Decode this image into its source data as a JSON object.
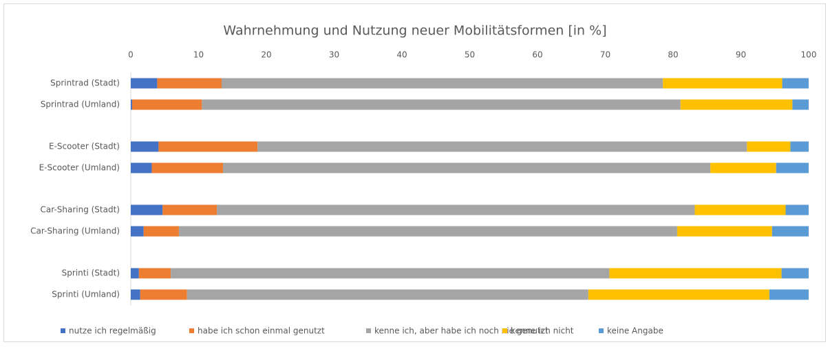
{
  "chart_data": {
    "type": "stacked_barh",
    "title": "Wahrnehmung und Nutzung neuer Mobilitätsformen [in %]",
    "categories": [
      "Sprintrad (Stadt)",
      "Sprintrad (Umland)",
      "E-Scooter (Stadt)",
      "E-Scooter (Umland)",
      "Car-Sharing (Stadt)",
      "Car-Sharing (Umland)",
      "Sprinti (Stadt)",
      "Sprinti (Umland)"
    ],
    "series": [
      {
        "name": "nutze ich regelmäßig",
        "color": "#4472c4",
        "values": [
          3.9,
          0.2,
          4.1,
          3.1,
          4.7,
          1.9,
          1.2,
          1.4
        ]
      },
      {
        "name": "habe ich schon einmal genutzt",
        "color": "#ed7d31",
        "values": [
          9.5,
          10.3,
          14.6,
          10.5,
          8.0,
          5.2,
          4.7,
          6.9
        ]
      },
      {
        "name": "kenne ich, aber habe ich noch nie genutzt",
        "color": "#a5a5a5",
        "values": [
          65.1,
          70.6,
          72.2,
          71.9,
          70.5,
          73.5,
          64.7,
          59.2
        ]
      },
      {
        "name": "kenne ich nicht",
        "color": "#ffc000",
        "values": [
          17.6,
          16.5,
          6.4,
          9.7,
          13.4,
          14.0,
          25.4,
          26.7
        ]
      },
      {
        "name": "keine Angabe",
        "color": "#5b9bd5",
        "values": [
          3.9,
          2.4,
          2.7,
          4.8,
          3.4,
          5.4,
          4.0,
          5.8
        ]
      }
    ],
    "xlim": [
      0,
      100
    ],
    "xticks": [
      0,
      10,
      20,
      30,
      40,
      50,
      60,
      70,
      80,
      90,
      100
    ]
  }
}
